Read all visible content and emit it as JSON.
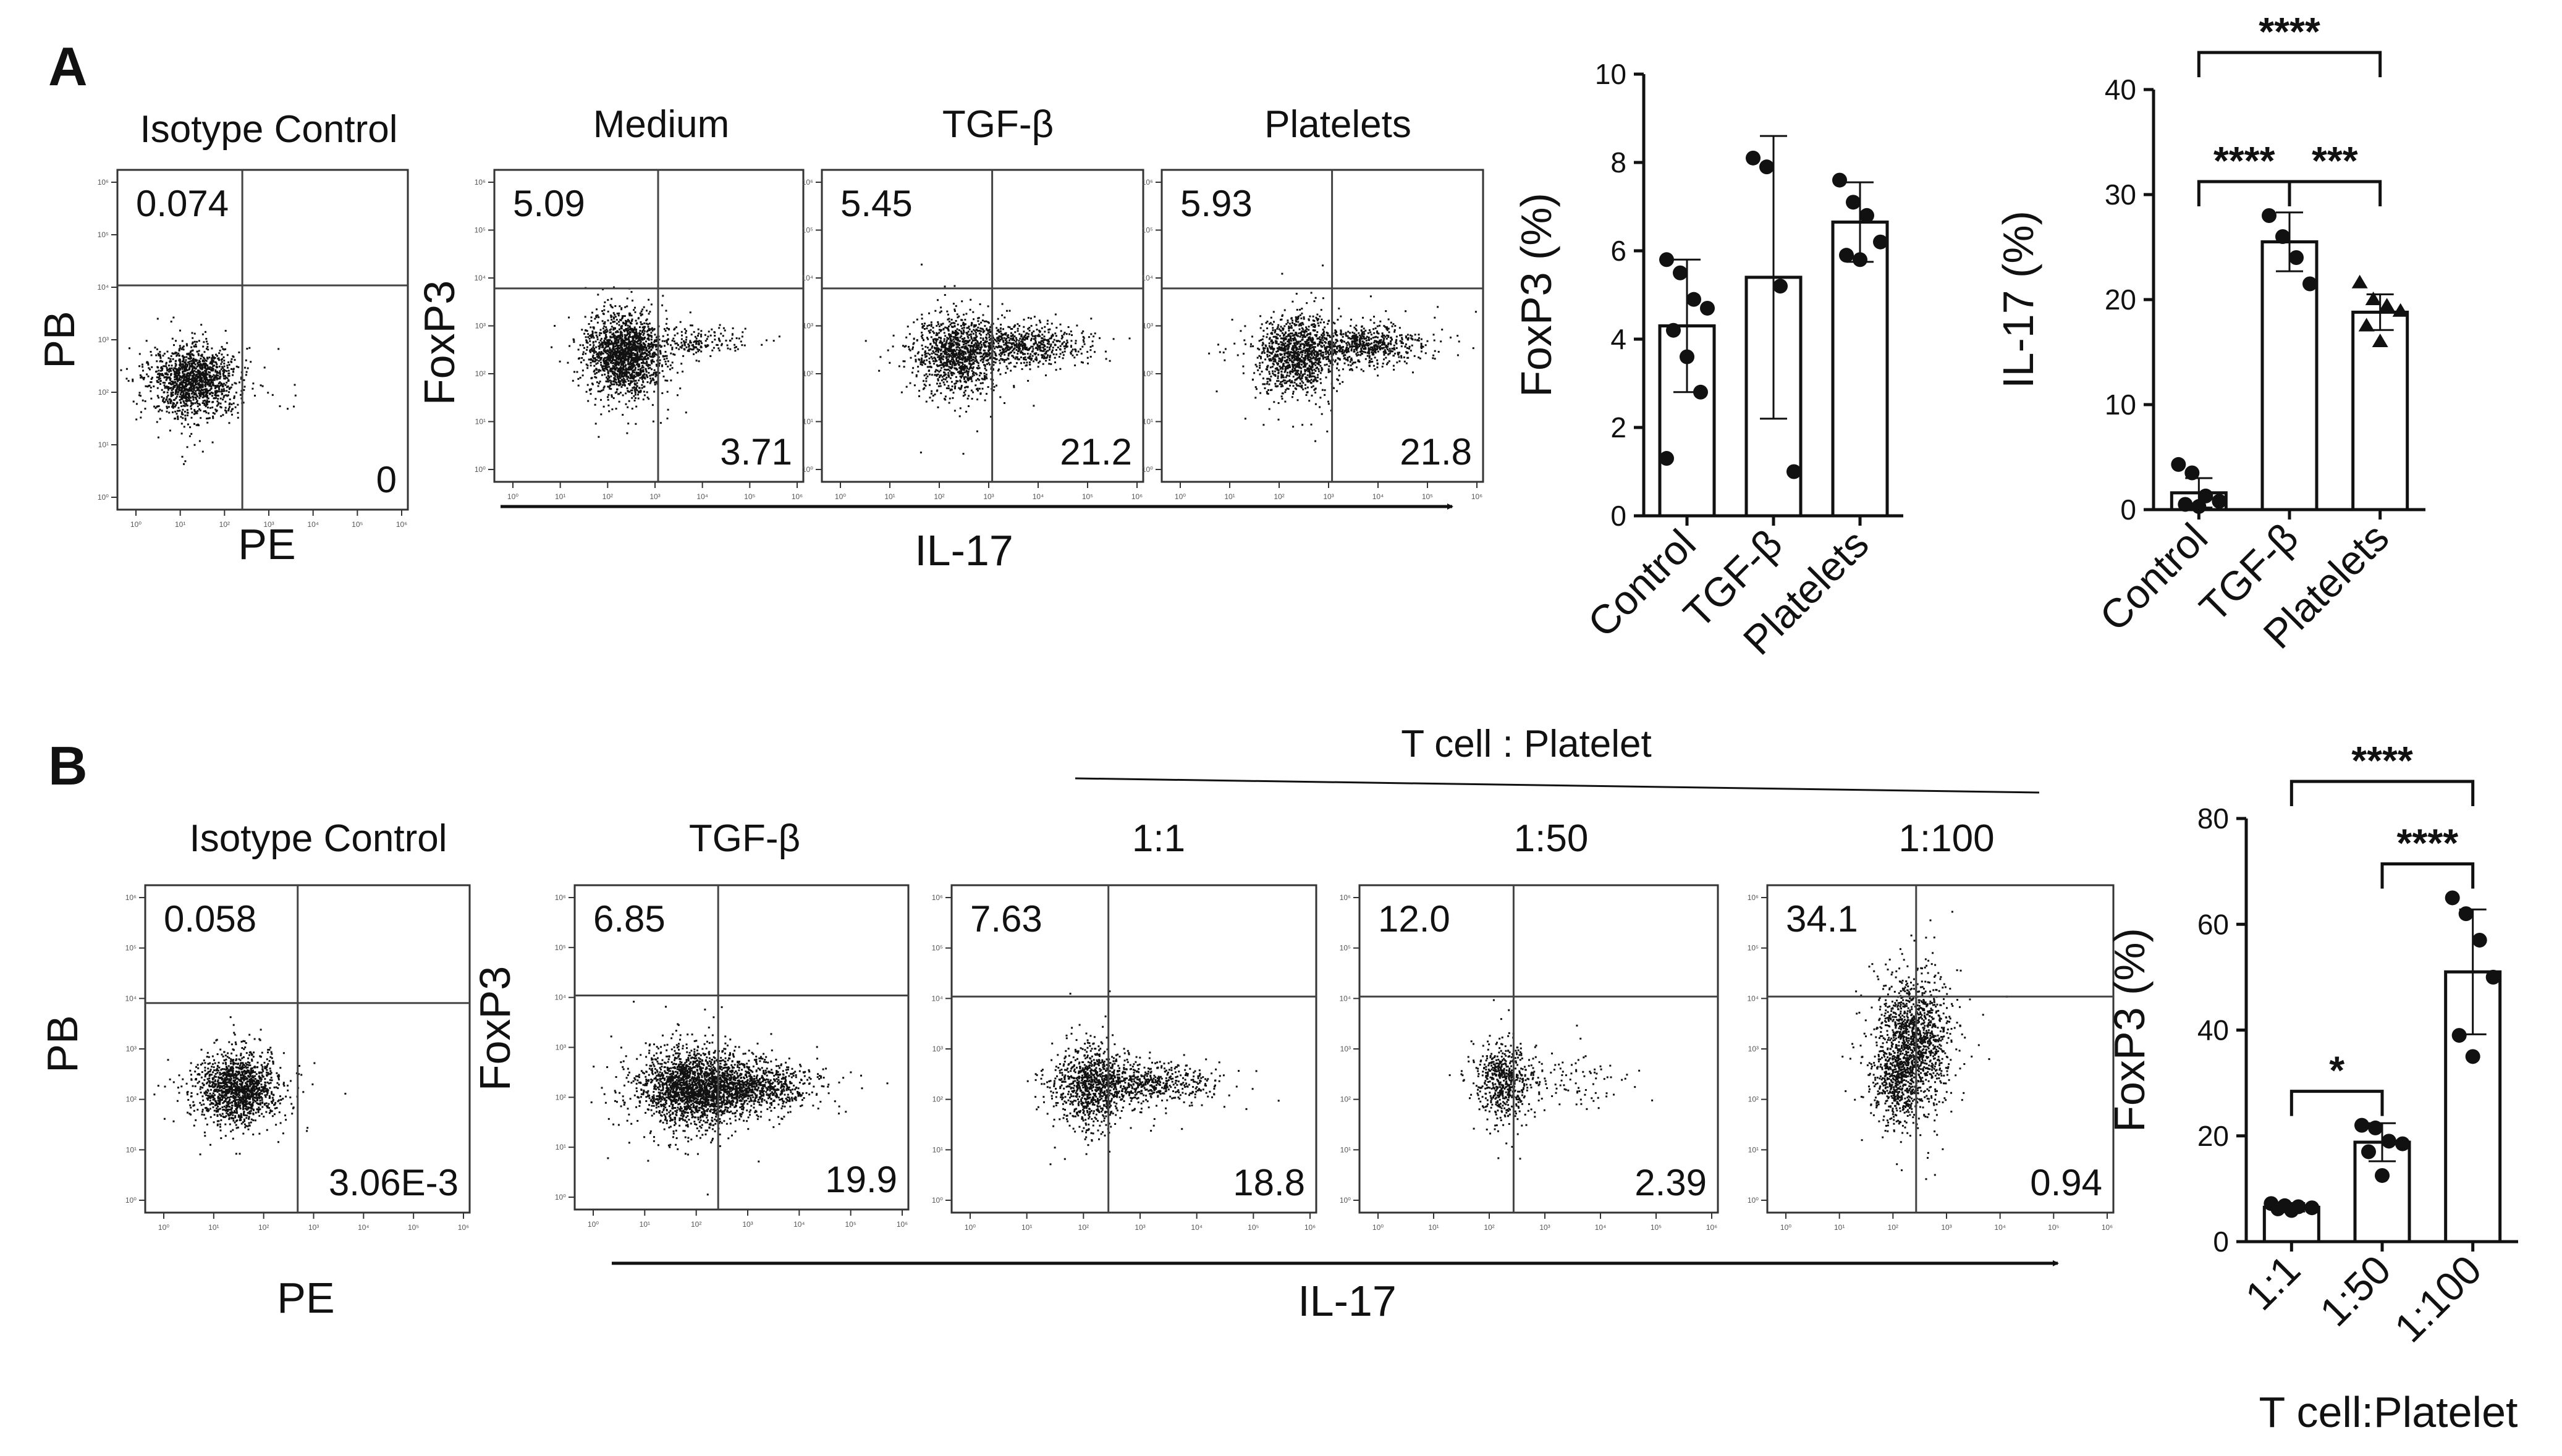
{
  "panels": {
    "A": "A",
    "B": "B"
  },
  "chart_data": [
    {
      "type": "scatter",
      "kind": "flow-cytometry",
      "panel": "A",
      "y_axis_label": "PB",
      "x_axis_label": "PE",
      "plots": [
        {
          "title": "Isotype Control",
          "upper_left": "0.074",
          "lower_right": "0"
        }
      ]
    },
    {
      "type": "scatter",
      "kind": "flow-cytometry",
      "panel": "A",
      "y_axis_label": "FoxP3",
      "x_axis_label": "IL-17",
      "plots": [
        {
          "title": "Medium",
          "upper_left": "5.09",
          "lower_right": "3.71"
        },
        {
          "title": "TGF-β",
          "upper_left": "5.45",
          "lower_right": "21.2"
        },
        {
          "title": "Platelets",
          "upper_left": "5.93",
          "lower_right": "21.8"
        }
      ]
    },
    {
      "type": "bar",
      "panel": "A",
      "ylabel": "FoxP3 (%)",
      "ylim": [
        0,
        10
      ],
      "yticks": [
        0,
        2,
        4,
        6,
        8,
        10
      ],
      "categories": [
        "Control",
        "TGF-β",
        "Platelets"
      ],
      "values": [
        4.3,
        5.4,
        6.65
      ],
      "error": [
        1.5,
        3.2,
        0.9
      ],
      "points": [
        [
          5.8,
          5.5,
          4.9,
          4.7,
          4.2,
          3.6,
          2.8,
          1.3
        ],
        [
          8.1,
          7.9,
          5.2,
          1.0
        ],
        [
          7.6,
          7.1,
          6.8,
          6.2,
          5.9,
          5.8
        ]
      ],
      "markers": [
        "circle",
        "circle",
        "circle"
      ]
    },
    {
      "type": "bar",
      "panel": "A",
      "ylabel": "IL-17 (%)",
      "ylim": [
        0,
        40
      ],
      "yticks": [
        0,
        10,
        20,
        30,
        40
      ],
      "categories": [
        "Control",
        "TGF-β",
        "Platelets"
      ],
      "values": [
        1.6,
        25.5,
        18.8
      ],
      "error": [
        1.4,
        2.8,
        1.7
      ],
      "points": [
        [
          4.3,
          3.5,
          1.3,
          0.8,
          0.5,
          0.3
        ],
        [
          28.0,
          26.0,
          24.0,
          21.5
        ],
        [
          21.6,
          20.0,
          19.4,
          18.9,
          17.5,
          16.0
        ]
      ],
      "markers": [
        "circle",
        "circle",
        "triangle"
      ],
      "significance": [
        {
          "from": 0,
          "to": 2,
          "label": "****"
        },
        {
          "from": 0,
          "to": 1,
          "label": "****"
        },
        {
          "from": 1,
          "to": 2,
          "label": "***"
        }
      ]
    },
    {
      "type": "scatter",
      "kind": "flow-cytometry",
      "panel": "B",
      "y_axis_label": "PB",
      "x_axis_label": "PE",
      "plots": [
        {
          "title": "Isotype Control",
          "upper_left": "0.058",
          "lower_right": "3.06E-3"
        }
      ]
    },
    {
      "type": "scatter",
      "kind": "flow-cytometry",
      "panel": "B",
      "y_axis_label": "FoxP3",
      "x_axis_label": "IL-17",
      "group_label": "T cell : Platelet",
      "plots": [
        {
          "title": "TGF-β",
          "upper_left": "6.85",
          "lower_right": "19.9"
        },
        {
          "title": "1:1",
          "upper_left": "7.63",
          "lower_right": "18.8"
        },
        {
          "title": "1:50",
          "upper_left": "12.0",
          "lower_right": "2.39"
        },
        {
          "title": "1:100",
          "upper_left": "34.1",
          "lower_right": "0.94"
        }
      ]
    },
    {
      "type": "bar",
      "panel": "B",
      "ylabel": "FoxP3 (%)",
      "xlabel": "T cell:Platelet",
      "ylim": [
        0,
        80
      ],
      "yticks": [
        0,
        20,
        40,
        60,
        80
      ],
      "categories": [
        "1:1",
        "1:50",
        "1:100"
      ],
      "values": [
        6.5,
        18.8,
        51.0
      ],
      "error": [
        0.8,
        3.6,
        11.8
      ],
      "points": [
        [
          7.2,
          6.8,
          6.6,
          6.4,
          6.2,
          5.9
        ],
        [
          22.0,
          21.5,
          19.0,
          18.5,
          17.0,
          12.5
        ],
        [
          65.0,
          62.0,
          57.0,
          50.0,
          39.0,
          35.0
        ]
      ],
      "markers": [
        "circle",
        "circle",
        "circle"
      ],
      "significance": [
        {
          "from": 0,
          "to": 2,
          "label": "****"
        },
        {
          "from": 1,
          "to": 2,
          "label": "****"
        },
        {
          "from": 0,
          "to": 1,
          "label": "*"
        }
      ]
    }
  ],
  "flow_tick_labels": [
    "10⁰",
    "10¹",
    "10²",
    "10³",
    "10⁴",
    "10⁵",
    "10⁶"
  ]
}
